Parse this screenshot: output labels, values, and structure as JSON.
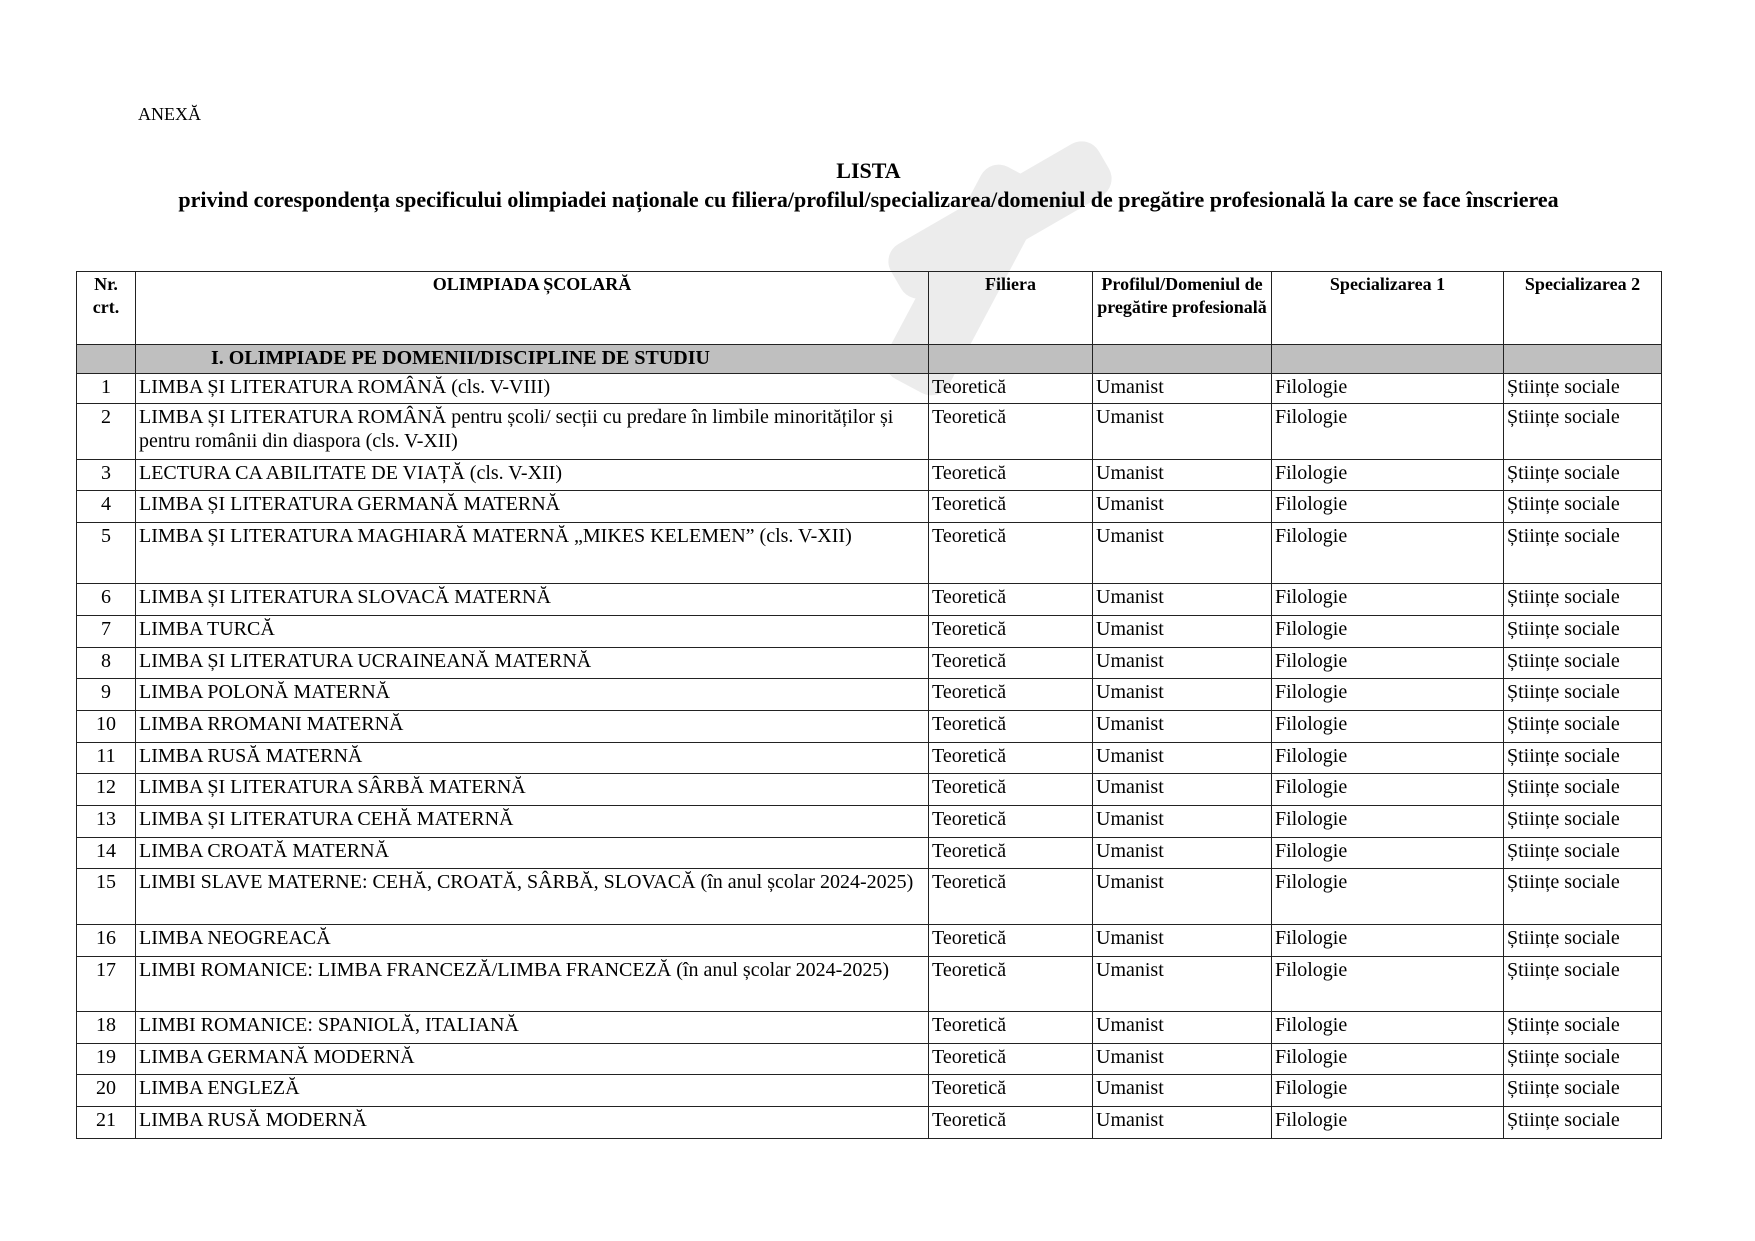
{
  "anexa": "ANEXĂ",
  "title": "LISTA",
  "subtitle": "privind corespondența specificului olimpiadei naționale cu filiera/profilul/specializarea/domeniul de pregătire profesională la care se face înscrierea",
  "headers": [
    "Nr. crt.",
    "OLIMPIADA ȘCOLARĂ",
    "Filiera",
    "Profilul/Domeniul de pregătire profesională",
    "Specializarea 1",
    "Specializarea 2"
  ],
  "section": "I. OLIMPIADE PE DOMENII/DISCIPLINE DE STUDIU",
  "rows": [
    [
      "1",
      "LIMBA ȘI LITERATURA ROMÂNĂ (cls. V-VIII)",
      "Teoretică",
      "Umanist",
      "Filologie",
      "Științe sociale"
    ],
    [
      "2",
      "LIMBA ȘI LITERATURA ROMÂNĂ pentru școli/ secții cu predare în limbile minorităților și pentru românii din diaspora (cls. V-XII)",
      "Teoretică",
      "Umanist",
      "Filologie",
      "Științe sociale"
    ],
    [
      "3",
      "LECTURA CA ABILITATE DE VIAȚĂ (cls. V-XII)",
      "Teoretică",
      "Umanist",
      "Filologie",
      "Științe sociale"
    ],
    [
      "4",
      "LIMBA ȘI LITERATURA GERMANĂ MATERNĂ",
      "Teoretică",
      "Umanist",
      "Filologie",
      "Științe sociale"
    ],
    [
      "5",
      "LIMBA ȘI LITERATURA MAGHIARĂ MATERNĂ „MIKES KELEMEN” (cls. V-XII)",
      "Teoretică",
      "Umanist",
      "Filologie",
      "Științe sociale"
    ],
    [
      "6",
      "LIMBA ȘI LITERATURA SLOVACĂ MATERNĂ",
      "Teoretică",
      "Umanist",
      "Filologie",
      "Științe sociale"
    ],
    [
      "7",
      "LIMBA TURCĂ",
      "Teoretică",
      "Umanist",
      "Filologie",
      "Științe sociale"
    ],
    [
      "8",
      "LIMBA ȘI LITERATURA UCRAINEANĂ MATERNĂ",
      "Teoretică",
      "Umanist",
      "Filologie",
      "Științe sociale"
    ],
    [
      "9",
      "LIMBA POLONĂ MATERNĂ",
      "Teoretică",
      "Umanist",
      "Filologie",
      "Științe sociale"
    ],
    [
      "10",
      "LIMBA RROMANI MATERNĂ",
      "Teoretică",
      "Umanist",
      "Filologie",
      "Științe sociale"
    ],
    [
      "11",
      "LIMBA RUSĂ MATERNĂ",
      "Teoretică",
      "Umanist",
      "Filologie",
      "Științe sociale"
    ],
    [
      "12",
      "LIMBA ȘI LITERATURA SÂRBĂ MATERNĂ",
      "Teoretică",
      "Umanist",
      "Filologie",
      "Științe sociale"
    ],
    [
      "13",
      "LIMBA ȘI LITERATURA CEHĂ MATERNĂ",
      "Teoretică",
      "Umanist",
      "Filologie",
      "Științe sociale"
    ],
    [
      "14",
      "LIMBA CROATĂ MATERNĂ",
      "Teoretică",
      "Umanist",
      "Filologie",
      "Științe sociale"
    ],
    [
      "15",
      "LIMBI SLAVE MATERNE: CEHĂ, CROATĂ, SÂRBĂ, SLOVACĂ (în anul școlar 2024-2025)",
      "Teoretică",
      "Umanist",
      "Filologie",
      "Științe sociale"
    ],
    [
      "16",
      "LIMBA NEOGREACĂ",
      "Teoretică",
      "Umanist",
      "Filologie",
      "Științe sociale"
    ],
    [
      "17",
      "LIMBI ROMANICE: LIMBA FRANCEZĂ/LIMBA FRANCEZĂ  (în anul școlar 2024-2025)",
      "Teoretică",
      "Umanist",
      "Filologie",
      "Științe sociale"
    ],
    [
      "18",
      "LIMBI ROMANICE: SPANIOLĂ, ITALIANĂ",
      "Teoretică",
      "Umanist",
      "Filologie",
      "Științe sociale"
    ],
    [
      "19",
      "LIMBA GERMANĂ MODERNĂ",
      "Teoretică",
      "Umanist",
      "Filologie",
      "Științe sociale"
    ],
    [
      "20",
      "LIMBA ENGLEZĂ",
      "Teoretică",
      "Umanist",
      "Filologie",
      "Științe sociale"
    ],
    [
      "21",
      "LIMBA RUSĂ MODERNĂ",
      "Teoretică",
      "Umanist",
      "Filologie",
      "Științe sociale"
    ]
  ]
}
